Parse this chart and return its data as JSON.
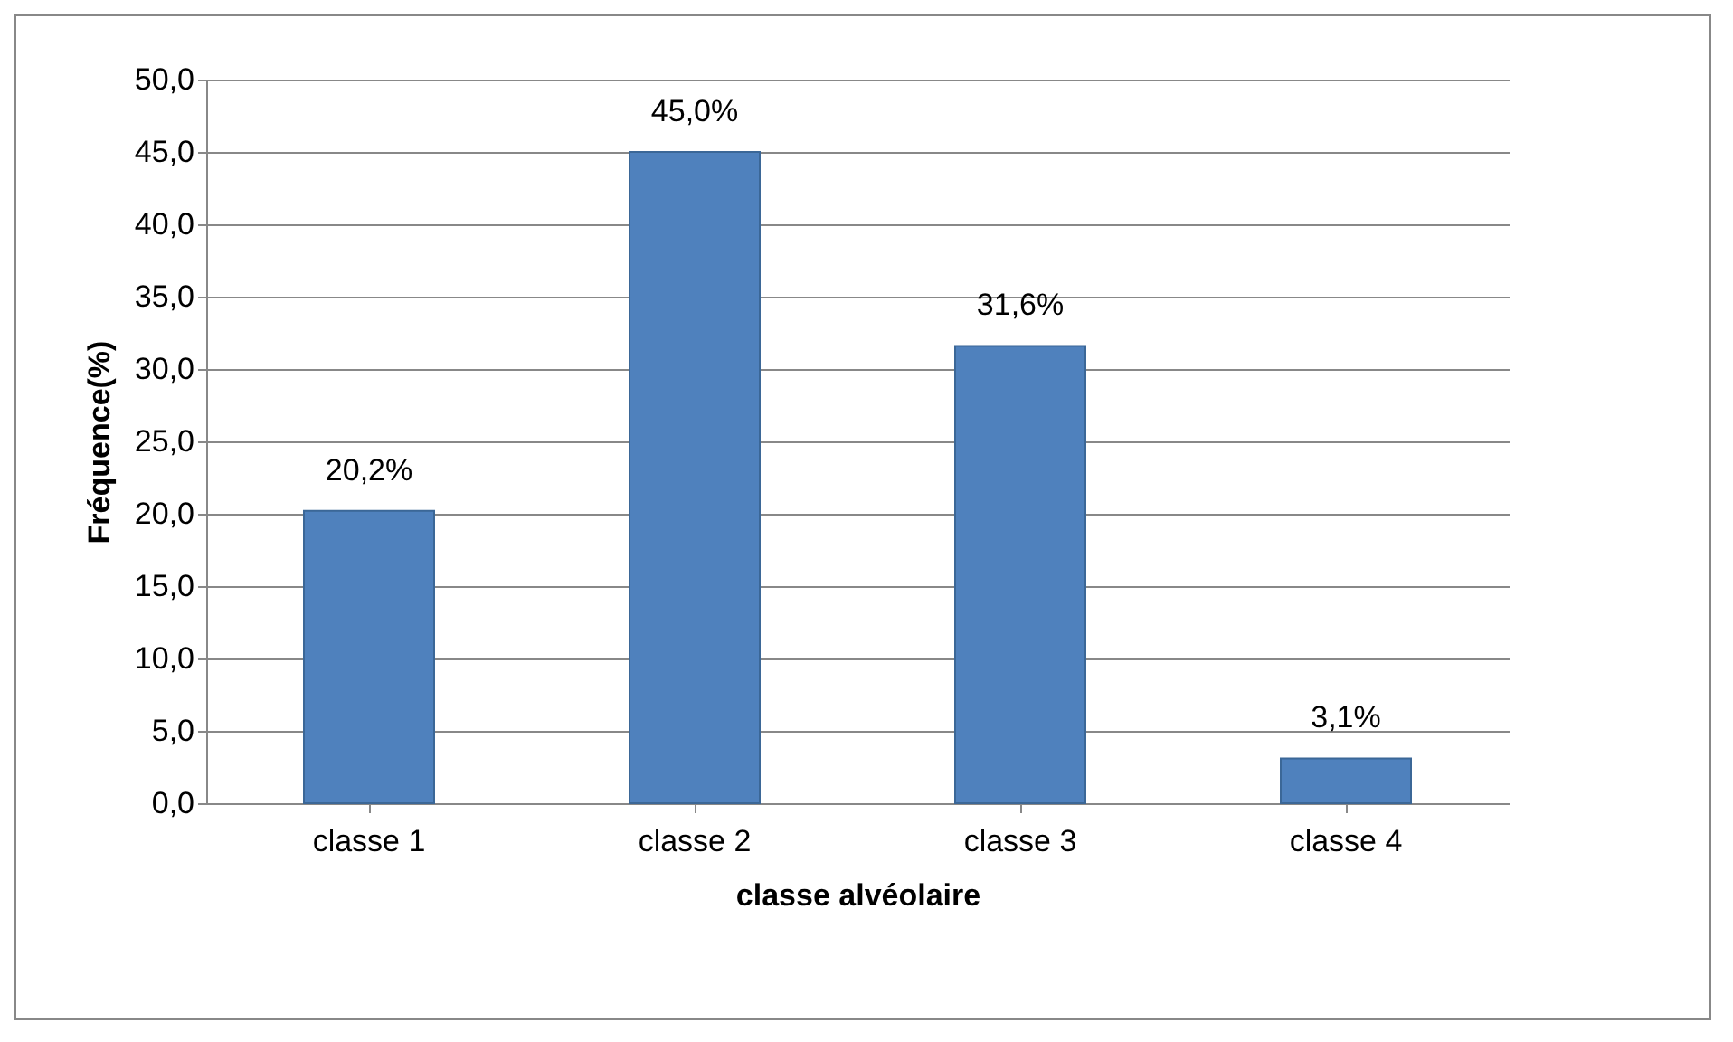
{
  "chart_data": {
    "type": "bar",
    "xlabel": "classe alvéolaire",
    "ylabel": "Fréquence(%)",
    "categories": [
      "classe 1",
      "classe 2",
      "classe 3",
      "classe 4"
    ],
    "values": [
      20.2,
      45.0,
      31.6,
      3.1
    ],
    "value_labels": [
      "20,2%",
      "45,0%",
      "31,6%",
      "3,1%"
    ],
    "color": "#4f81bd",
    "ylim": [
      0,
      50
    ],
    "yticks": [
      {
        "value": 0,
        "label": "0,0"
      },
      {
        "value": 5,
        "label": "5,0"
      },
      {
        "value": 10,
        "label": "10,0"
      },
      {
        "value": 15,
        "label": "15,0"
      },
      {
        "value": 20,
        "label": "20,0"
      },
      {
        "value": 25,
        "label": "25,0"
      },
      {
        "value": 30,
        "label": "30,0"
      },
      {
        "value": 35,
        "label": "35,0"
      },
      {
        "value": 40,
        "label": "40,0"
      },
      {
        "value": 45,
        "label": "45,0"
      },
      {
        "value": 50,
        "label": "50,0"
      }
    ],
    "grid": "y"
  }
}
